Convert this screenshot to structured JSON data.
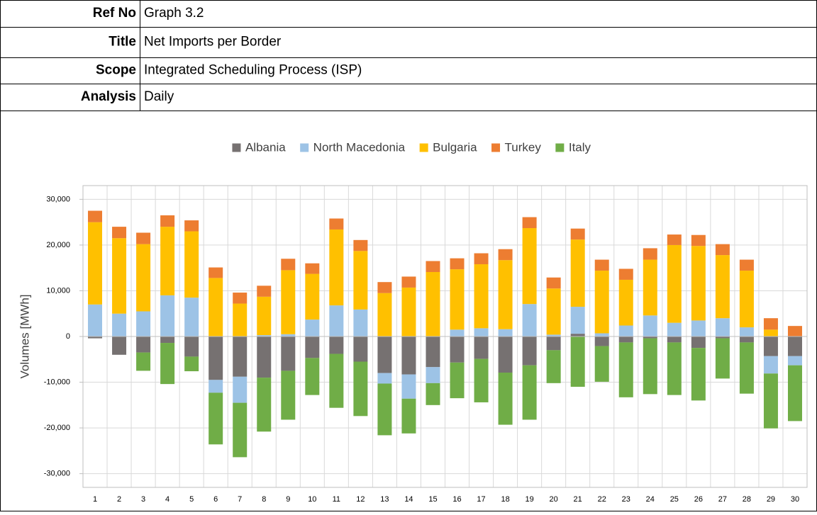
{
  "table": {
    "rows": [
      [
        "Ref No",
        "Graph 3.2"
      ],
      [
        "Title",
        "Net Imports per Border"
      ],
      [
        "Scope",
        "Integrated Scheduling Process (ISP)"
      ],
      [
        "Analysis",
        "Daily"
      ]
    ]
  },
  "chart_data": {
    "type": "bar",
    "stacked": true,
    "y_label": "Volumes [MWh]",
    "categories": [
      "1",
      "2",
      "3",
      "4",
      "5",
      "6",
      "7",
      "8",
      "9",
      "10",
      "11",
      "12",
      "13",
      "14",
      "15",
      "16",
      "17",
      "18",
      "19",
      "20",
      "21",
      "22",
      "23",
      "24",
      "25",
      "26",
      "27",
      "28",
      "29",
      "30"
    ],
    "series": [
      {
        "name": "Albania",
        "color": "#767171",
        "values": [
          -400,
          -4000,
          -3500,
          -1400,
          -4400,
          -9500,
          -8800,
          -9000,
          -7500,
          -4700,
          -3800,
          -5500,
          -8000,
          -8300,
          -6700,
          -5700,
          -4900,
          -7900,
          -6300,
          -3000,
          600,
          -2100,
          -1300,
          -400,
          -1300,
          -2500,
          -400,
          -1300,
          -4300,
          -4300
        ]
      },
      {
        "name": "North Macedonia",
        "color": "#9dc3e6",
        "values": [
          7000,
          5000,
          5500,
          9000,
          8500,
          -2800,
          -5700,
          300,
          500,
          3700,
          6800,
          5900,
          -2300,
          -5300,
          -3500,
          1500,
          1800,
          1600,
          7100,
          400,
          5900,
          700,
          2400,
          4600,
          3000,
          3500,
          4000,
          2000,
          -3800,
          -2000
        ]
      },
      {
        "name": "Bulgaria",
        "color": "#ffc000",
        "values": [
          18000,
          16500,
          14700,
          15000,
          14500,
          12800,
          7200,
          8400,
          14000,
          10000,
          16600,
          12800,
          9500,
          10700,
          14100,
          13200,
          14000,
          15100,
          16600,
          10100,
          14700,
          13700,
          10000,
          12200,
          17000,
          16300,
          13800,
          12400,
          1500,
          0
        ]
      },
      {
        "name": "Turkey",
        "color": "#ed7d31",
        "values": [
          2500,
          2500,
          2500,
          2500,
          2400,
          2300,
          2400,
          2400,
          2500,
          2300,
          2400,
          2400,
          2400,
          2400,
          2400,
          2400,
          2400,
          2400,
          2400,
          2400,
          2400,
          2400,
          2400,
          2500,
          2300,
          2400,
          2400,
          2400,
          2500,
          2300
        ]
      },
      {
        "name": "Italy",
        "color": "#70ad47",
        "values": [
          0,
          0,
          -4000,
          -9000,
          -3200,
          -11300,
          -11900,
          -11800,
          -10700,
          -8100,
          -11800,
          -11900,
          -11300,
          -7600,
          -4800,
          -7800,
          -9500,
          -11400,
          -11900,
          -7200,
          -11000,
          -7800,
          -12000,
          -12200,
          -11500,
          -11500,
          -8800,
          -11200,
          -12000,
          -12200
        ]
      }
    ],
    "ylim": [
      -33000,
      33000
    ],
    "yticks": [
      {
        "value": -30000,
        "label": "-30,000"
      },
      {
        "value": -20000,
        "label": "-20,000"
      },
      {
        "value": -10000,
        "label": "-10,000"
      },
      0,
      {
        "value": 10000,
        "label": "10,000"
      },
      {
        "value": 20000,
        "label": "20,000"
      },
      {
        "value": 30000,
        "label": "30,000"
      }
    ],
    "grid": true,
    "legend": "top"
  }
}
